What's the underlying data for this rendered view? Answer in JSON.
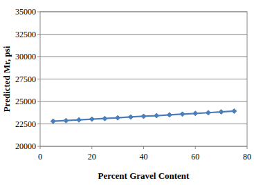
{
  "chart_data": {
    "type": "line",
    "x_label": "Percent Gravel Content",
    "y_label": "Predicted Mr, psi",
    "x": [
      5,
      10,
      15,
      20,
      25,
      30,
      35,
      40,
      45,
      50,
      55,
      60,
      65,
      70,
      75
    ],
    "series": [
      {
        "name": "Predicted Mr",
        "color": "#4a7ebb",
        "marker": "diamond",
        "values": [
          22800,
          22870,
          22950,
          23030,
          23100,
          23180,
          23270,
          23350,
          23420,
          23510,
          23590,
          23670,
          23750,
          23840,
          23930
        ]
      }
    ],
    "xlim": [
      0,
      80
    ],
    "xticks": [
      0,
      20,
      40,
      60,
      80
    ],
    "ylim": [
      20000,
      35000
    ],
    "yticks": [
      20000,
      22500,
      25000,
      27500,
      30000,
      32500,
      35000
    ],
    "grid": true
  }
}
